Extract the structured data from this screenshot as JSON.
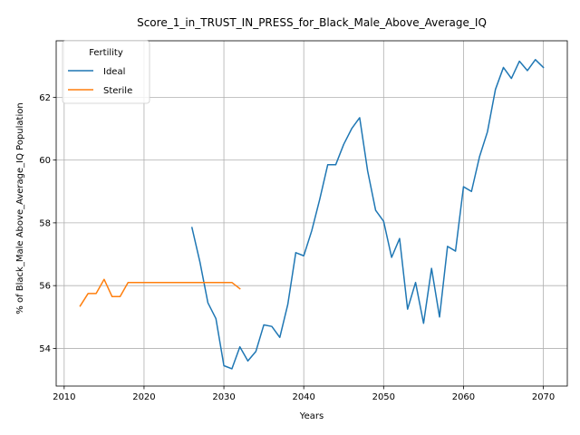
{
  "chart_data": {
    "type": "line",
    "title": "Score_1_in_TRUST_IN_PRESS_for_Black_Male_Above_Average_IQ",
    "xlabel": "Years",
    "ylabel": "% of Black_Male Above_Average_IQ Population",
    "xlim": [
      2009,
      2073
    ],
    "ylim": [
      52.8,
      63.8
    ],
    "xticks": [
      2010,
      2020,
      2030,
      2040,
      2050,
      2060,
      2070
    ],
    "yticks": [
      54,
      56,
      58,
      60,
      62
    ],
    "grid": true,
    "legend": {
      "title": "Fertility",
      "placement": "top-left"
    },
    "series": [
      {
        "name": "Ideal",
        "color": "#1f77b4",
        "x": [
          2026,
          2027,
          2028,
          2029,
          2030,
          2031,
          2032,
          2033,
          2034,
          2035,
          2036,
          2037,
          2038,
          2039,
          2040,
          2041,
          2042,
          2043,
          2044,
          2045,
          2046,
          2047,
          2048,
          2049,
          2050,
          2051,
          2052,
          2053,
          2054,
          2055,
          2056,
          2057,
          2058,
          2059,
          2060,
          2061,
          2062,
          2063,
          2064,
          2065,
          2066,
          2067,
          2068,
          2069,
          2070
        ],
        "y": [
          57.85,
          56.75,
          55.45,
          54.95,
          53.45,
          53.35,
          54.05,
          53.6,
          53.9,
          54.75,
          54.7,
          54.35,
          55.4,
          57.05,
          56.95,
          57.75,
          58.75,
          59.85,
          59.85,
          60.5,
          61.0,
          61.35,
          59.65,
          58.4,
          58.05,
          56.9,
          57.5,
          55.25,
          56.1,
          54.8,
          56.55,
          55.0,
          57.25,
          57.1,
          59.15,
          59.0,
          60.1,
          60.9,
          62.25,
          62.95,
          62.6,
          63.15,
          62.85,
          63.2,
          62.95
        ]
      },
      {
        "name": "Sterile",
        "color": "#ff7f0e",
        "x": [
          2012,
          2013,
          2014,
          2015,
          2016,
          2017,
          2018,
          2019,
          2020,
          2021,
          2022,
          2023,
          2024,
          2025,
          2026,
          2027,
          2028,
          2029,
          2030,
          2031,
          2032
        ],
        "y": [
          55.35,
          55.75,
          55.75,
          56.2,
          55.65,
          55.65,
          56.1,
          56.1,
          56.1,
          56.1,
          56.1,
          56.1,
          56.1,
          56.1,
          56.1,
          56.1,
          56.1,
          56.1,
          56.1,
          56.1,
          55.9
        ]
      }
    ]
  }
}
